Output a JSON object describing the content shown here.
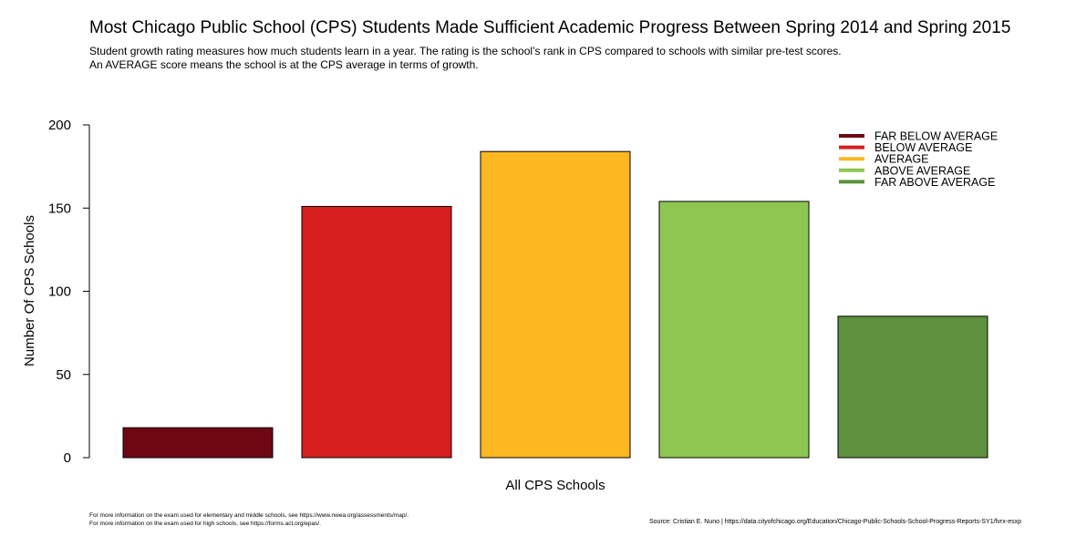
{
  "chart_data": {
    "type": "bar",
    "title": "Most Chicago Public School (CPS) Students Made Sufficient Academic Progress Between Spring 2014 and Spring 2015",
    "subtitle": [
      "Student growth rating measures how much students learn in a year. The rating is the school’s rank in CPS compared to schools with similar pre-test scores.",
      "An AVERAGE score means the school is at the CPS average in terms of growth."
    ],
    "xlabel": "All CPS Schools",
    "ylabel": "Number Of CPS Schools",
    "ylim": [
      0,
      200
    ],
    "yticks": [
      0,
      50,
      100,
      150,
      200
    ],
    "categories": [
      "FAR BELOW AVERAGE",
      "BELOW AVERAGE",
      "AVERAGE",
      "ABOVE AVERAGE",
      "FAR ABOVE AVERAGE"
    ],
    "values": [
      18,
      151,
      184,
      154,
      85
    ],
    "colors": [
      "#6e0712",
      "#d71f20",
      "#fcb820",
      "#8fc652",
      "#5e903d"
    ],
    "legend_position": "top-right",
    "grid": false
  },
  "footnotes": [
    "For more information on the exam used for elementary and middle schools, see https://www.nwea.org/assessments/map/.",
    "For more information on the exam used for high schools, see https://forms.act.org/epas/."
  ],
  "source": "Source: Cristian E. Nuno | https://data.cityofchicago.org/Education/Chicago-Public-Schools-School-Progress-Reports-SY1/fvrx-esxp"
}
